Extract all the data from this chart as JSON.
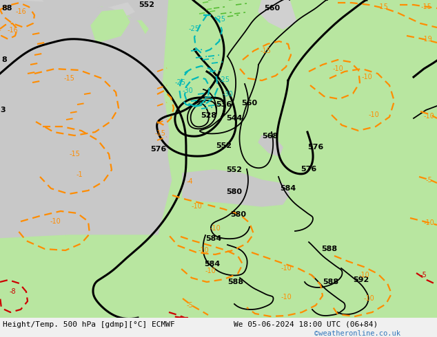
{
  "title_left": "Height/Temp. 500 hPa [gdmp][°C] ECMWF",
  "title_right": "We 05-06-2024 18:00 UTC (06+84)",
  "credit": "©weatheronline.co.uk",
  "fig_w": 6.34,
  "fig_h": 4.9,
  "dpi": 100,
  "map_green": "#b8e6a0",
  "map_gray": "#c8c8c8",
  "map_white": "#e8e8e8",
  "bottom_bg": "#f0f0f0",
  "z_col": "#000000",
  "or_col": "#ff8c00",
  "cy_col": "#00b8b8",
  "re_col": "#cc0000",
  "gr_col": "#44aa44",
  "lw_thick": 2.2,
  "lw_thin": 1.3,
  "lw_dash": 1.6
}
